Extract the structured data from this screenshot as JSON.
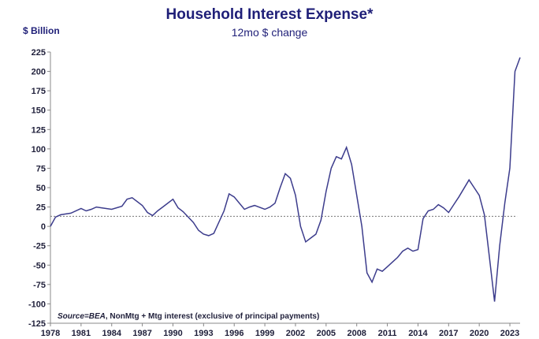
{
  "chart_data": {
    "type": "line",
    "title": "Household Interest Expense*",
    "subtitle": "12mo $ change",
    "ylabel": "$ Billion",
    "source_label": "Source=BEA",
    "source_text": ", NonMtg + Mtg interest (exclusive of principal payments)",
    "xlim": [
      1978,
      2024
    ],
    "ylim": [
      -125,
      225
    ],
    "x_ticks": [
      1978,
      1981,
      1984,
      1987,
      1990,
      1993,
      1996,
      1999,
      2002,
      2005,
      2008,
      2011,
      2014,
      2017,
      2020,
      2023
    ],
    "y_ticks": [
      225,
      200,
      175,
      150,
      125,
      100,
      75,
      50,
      25,
      0,
      -25,
      -50,
      -75,
      -100,
      -125
    ],
    "grid": false,
    "reference_line": {
      "y": 13,
      "style": "dotted"
    },
    "colors": {
      "line": "#3c3c8c",
      "text": "#1f1f78",
      "axis": "#888888"
    },
    "series": [
      {
        "x": [
          1978,
          1978.5,
          1979,
          1980,
          1981,
          1981.5,
          1982,
          1982.5,
          1983,
          1984,
          1985,
          1985.5,
          1986,
          1987,
          1987.5,
          1988,
          1988.5,
          1989,
          1990,
          1990.5,
          1991,
          1992,
          1992.5,
          1993,
          1993.5,
          1994,
          1995,
          1995.5,
          1996,
          1997,
          1997.5,
          1998,
          1999,
          1999.5,
          2000,
          2000.5,
          2001,
          2001.5,
          2002,
          2002.5,
          2003,
          2003.5,
          2004,
          2004.5,
          2005,
          2005.5,
          2006,
          2006.5,
          2007,
          2007.5,
          2008,
          2008.5,
          2009,
          2009.5,
          2010,
          2010.5,
          2011,
          2011.5,
          2012,
          2012.5,
          2013,
          2013.5,
          2014,
          2014.5,
          2015,
          2015.5,
          2016,
          2016.5,
          2017,
          2017.5,
          2018,
          2019,
          2019.5,
          2020,
          2020.5,
          2021,
          2021.5,
          2022,
          2022.5,
          2023,
          2023.5,
          2024
        ],
        "y": [
          0,
          12,
          15,
          17,
          23,
          20,
          22,
          25,
          24,
          22,
          26,
          35,
          37,
          27,
          18,
          14,
          20,
          25,
          35,
          24,
          19,
          5,
          -5,
          -10,
          -12,
          -9,
          20,
          42,
          38,
          22,
          25,
          27,
          22,
          25,
          30,
          50,
          68,
          62,
          40,
          0,
          -20,
          -15,
          -10,
          8,
          45,
          75,
          90,
          87,
          102,
          80,
          40,
          0,
          -60,
          -72,
          -55,
          -58,
          -52,
          -46,
          -40,
          -32,
          -28,
          -32,
          -30,
          10,
          20,
          22,
          28,
          24,
          18,
          28,
          38,
          60,
          50,
          40,
          15,
          -40,
          -97,
          -25,
          30,
          75,
          200,
          218
        ]
      }
    ]
  }
}
